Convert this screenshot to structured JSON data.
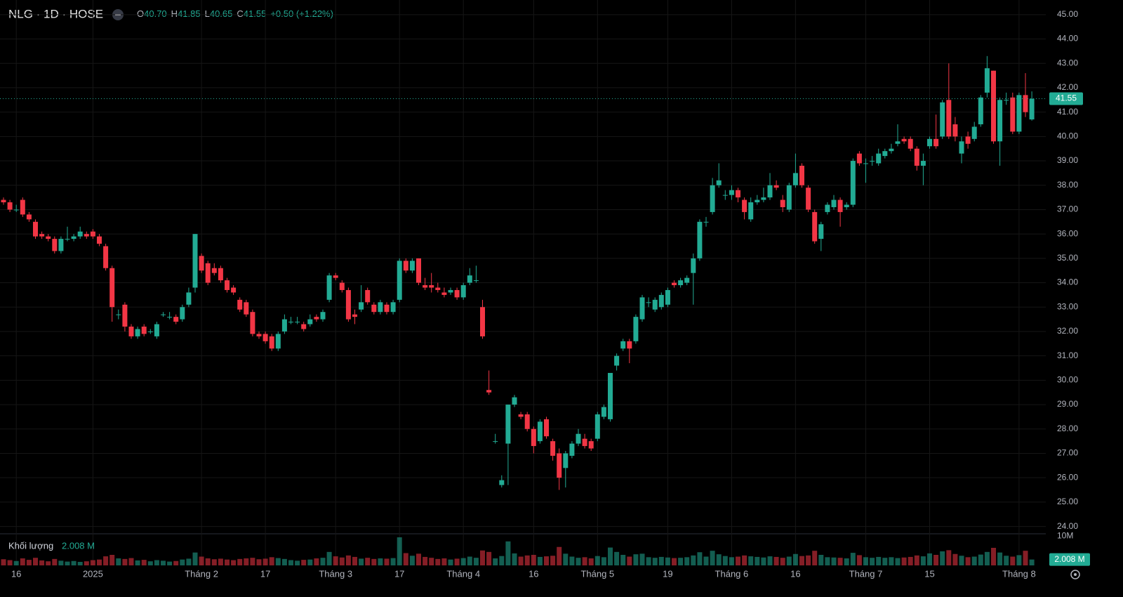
{
  "header": {
    "symbol": "NLG · 1D · HOSE",
    "open_label": "O",
    "open": "40.70",
    "high_label": "H",
    "high": "41.85",
    "low_label": "L",
    "low": "40.65",
    "close_label": "C",
    "close": "41.55",
    "change": "+0.50 (+1.22%)"
  },
  "chart_data": {
    "type": "candlestick",
    "up_color": "#22ab94",
    "down_color": "#f23645",
    "grid": true,
    "ylim": [
      23.7,
      45.6
    ],
    "yticks": [
      {
        "value": 24,
        "label": "24.00"
      },
      {
        "value": 25,
        "label": "25.00"
      },
      {
        "value": 26,
        "label": "26.00"
      },
      {
        "value": 27,
        "label": "27.00"
      },
      {
        "value": 28,
        "label": "28.00"
      },
      {
        "value": 29,
        "label": "29.00"
      },
      {
        "value": 30,
        "label": "30.00"
      },
      {
        "value": 31,
        "label": "31.00"
      },
      {
        "value": 32,
        "label": "32.00"
      },
      {
        "value": 33,
        "label": "33.00"
      },
      {
        "value": 34,
        "label": "34.00"
      },
      {
        "value": 35,
        "label": "35.00"
      },
      {
        "value": 36,
        "label": "36.00"
      },
      {
        "value": 37,
        "label": "37.00"
      },
      {
        "value": 38,
        "label": "38.00"
      },
      {
        "value": 39,
        "label": "39.00"
      },
      {
        "value": 40,
        "label": "40.00"
      },
      {
        "value": 41,
        "label": "41.00"
      },
      {
        "value": 42,
        "label": "42.00"
      },
      {
        "value": 43,
        "label": "43.00"
      },
      {
        "value": 44,
        "label": "44.00"
      },
      {
        "value": 45,
        "label": "45.00"
      }
    ],
    "categories": [
      null,
      null,
      "16",
      null,
      null,
      null,
      null,
      null,
      null,
      null,
      null,
      null,
      null,
      null,
      "2025",
      null,
      null,
      null,
      null,
      null,
      null,
      null,
      null,
      null,
      null,
      null,
      null,
      null,
      null,
      null,
      null,
      "Tháng 2",
      null,
      null,
      null,
      null,
      null,
      null,
      null,
      null,
      null,
      "17",
      null,
      null,
      null,
      null,
      null,
      null,
      null,
      null,
      null,
      null,
      "Tháng 3",
      null,
      null,
      null,
      null,
      null,
      null,
      null,
      null,
      null,
      "17",
      null,
      null,
      null,
      null,
      null,
      null,
      null,
      null,
      null,
      "Tháng 4",
      null,
      null,
      null,
      null,
      null,
      null,
      null,
      null,
      null,
      null,
      "16",
      null,
      null,
      null,
      null,
      null,
      null,
      null,
      null,
      null,
      "Tháng 5",
      null,
      null,
      null,
      null,
      null,
      null,
      null,
      null,
      null,
      null,
      "19",
      null,
      null,
      null,
      null,
      null,
      null,
      null,
      null,
      null,
      "Tháng 6",
      null,
      null,
      null,
      null,
      null,
      null,
      null,
      null,
      null,
      "16",
      null,
      null,
      null,
      null,
      null,
      null,
      null,
      null,
      null,
      null,
      "Tháng 7",
      null,
      null,
      null,
      null,
      null,
      null,
      null,
      null,
      null,
      "15",
      null,
      null,
      null,
      null,
      null,
      null,
      null,
      null,
      null,
      null,
      null,
      null,
      null,
      "Tháng 8",
      null,
      null
    ],
    "open": [
      37.4,
      37.3,
      37.0,
      37.4,
      36.8,
      36.5,
      36.0,
      35.9,
      35.8,
      35.3,
      35.8,
      35.8,
      35.9,
      36.0,
      36.1,
      35.9,
      35.5,
      34.6,
      32.7,
      33.1,
      32.2,
      31.8,
      32.2,
      32.0,
      31.8,
      32.7,
      32.6,
      32.6,
      32.5,
      33.1,
      33.8,
      35.1,
      34.8,
      34.6,
      34.6,
      34.1,
      33.8,
      33.3,
      33.2,
      32.8,
      31.9,
      31.9,
      31.8,
      31.3,
      32.0,
      32.4,
      32.4,
      32.3,
      32.3,
      32.6,
      32.5,
      33.3,
      34.3,
      34.0,
      33.7,
      32.7,
      32.9,
      33.7,
      33.1,
      32.8,
      33.1,
      32.8,
      33.3,
      34.9,
      34.5,
      35.0,
      33.9,
      33.9,
      33.8,
      33.6,
      33.6,
      33.7,
      33.4,
      34.0,
      34.1,
      33.0,
      29.6,
      27.5,
      25.7,
      27.4,
      29.0,
      28.6,
      28.6,
      28.0,
      27.5,
      28.4,
      27.5,
      27.0,
      26.4,
      26.9,
      27.4,
      27.6,
      27.5,
      27.6,
      28.5,
      28.4,
      30.6,
      31.3,
      31.6,
      31.6,
      32.5,
      33.2,
      32.9,
      33.0,
      33.1,
      34.0,
      33.9,
      34.0,
      34.4,
      35.0,
      36.5,
      36.9,
      38.0,
      37.6,
      37.6,
      37.8,
      37.4,
      36.6,
      37.3,
      37.4,
      37.5,
      38.0,
      37.4,
      37.0,
      38.0,
      38.8,
      37.9,
      36.9,
      35.8,
      36.9,
      37.1,
      37.4,
      37.1,
      37.2,
      39.3,
      38.9,
      39.0,
      38.9,
      39.2,
      39.4,
      39.7,
      39.9,
      39.9,
      39.5,
      38.8,
      39.6,
      39.9,
      40.0,
      41.5,
      40.5,
      39.3,
      40.0,
      39.9,
      40.5,
      41.8,
      42.7,
      39.8,
      41.5,
      41.6,
      40.2,
      41.7,
      40.7
    ],
    "high": [
      37.5,
      37.4,
      37.2,
      37.5,
      36.9,
      36.6,
      36.1,
      36.0,
      35.9,
      35.9,
      36.3,
      36.0,
      36.3,
      36.1,
      36.2,
      36.0,
      35.6,
      34.7,
      32.9,
      33.2,
      32.3,
      32.2,
      32.3,
      32.1,
      32.4,
      32.8,
      32.8,
      32.7,
      33.1,
      33.8,
      36.0,
      35.2,
      34.9,
      34.8,
      34.7,
      34.2,
      33.9,
      33.4,
      33.3,
      32.9,
      32.0,
      32.0,
      31.9,
      32.0,
      32.7,
      32.6,
      32.6,
      32.4,
      32.7,
      32.7,
      32.9,
      34.4,
      34.4,
      34.1,
      33.8,
      32.9,
      33.9,
      33.8,
      33.2,
      33.3,
      33.2,
      33.3,
      35.0,
      35.0,
      35.0,
      35.0,
      34.2,
      34.4,
      34.0,
      33.8,
      33.8,
      33.8,
      34.0,
      34.6,
      34.7,
      33.3,
      30.4,
      27.8,
      26.1,
      29.0,
      29.4,
      28.7,
      28.7,
      28.1,
      28.4,
      28.5,
      27.6,
      27.2,
      27.1,
      27.5,
      28.0,
      27.8,
      27.6,
      28.7,
      29.0,
      30.3,
      31.1,
      31.7,
      31.7,
      32.7,
      33.5,
      33.4,
      33.4,
      33.6,
      33.8,
      34.1,
      34.2,
      34.3,
      35.2,
      36.6,
      36.7,
      38.3,
      38.9,
      37.8,
      38.0,
      37.9,
      37.5,
      37.5,
      37.6,
      37.9,
      38.5,
      38.2,
      37.6,
      38.1,
      39.3,
      38.9,
      38.0,
      37.0,
      36.5,
      37.3,
      37.6,
      37.5,
      37.3,
      39.1,
      39.4,
      39.1,
      39.2,
      39.5,
      39.5,
      39.7,
      40.5,
      40.0,
      40.0,
      39.6,
      39.3,
      40.0,
      40.9,
      41.5,
      43.0,
      40.8,
      40.0,
      40.2,
      40.6,
      41.7,
      43.3,
      42.7,
      41.6,
      41.8,
      41.8,
      41.8,
      42.6,
      41.85
    ],
    "low": [
      37.2,
      36.9,
      36.9,
      36.7,
      36.5,
      35.8,
      35.8,
      35.7,
      35.2,
      35.2,
      35.7,
      35.7,
      35.8,
      35.8,
      35.8,
      35.5,
      34.5,
      32.4,
      32.5,
      32.0,
      31.7,
      31.7,
      31.8,
      31.9,
      31.7,
      32.6,
      32.5,
      32.3,
      32.4,
      33.0,
      33.6,
      34.4,
      33.9,
      34.3,
      34.0,
      33.6,
      33.5,
      32.8,
      32.6,
      31.8,
      31.7,
      31.5,
      31.2,
      31.2,
      31.9,
      32.3,
      32.3,
      32.0,
      32.2,
      32.4,
      32.4,
      33.2,
      34.1,
      33.6,
      32.4,
      32.3,
      32.8,
      33.1,
      32.7,
      32.7,
      32.7,
      32.7,
      33.2,
      34.4,
      34.4,
      33.9,
      33.7,
      33.6,
      33.6,
      33.4,
      33.5,
      33.3,
      33.3,
      33.9,
      34.0,
      31.7,
      29.4,
      27.4,
      25.6,
      25.7,
      28.9,
      28.4,
      27.9,
      27.0,
      27.4,
      27.6,
      26.7,
      25.5,
      25.6,
      26.8,
      27.3,
      27.2,
      27.1,
      27.5,
      28.4,
      28.3,
      30.4,
      31.2,
      30.7,
      31.5,
      32.4,
      33.0,
      32.8,
      32.9,
      33.0,
      33.8,
      33.8,
      33.9,
      33.1,
      34.9,
      36.3,
      36.8,
      37.9,
      37.4,
      37.4,
      37.3,
      36.6,
      36.5,
      37.2,
      37.3,
      37.4,
      37.8,
      36.9,
      36.9,
      37.9,
      37.9,
      36.9,
      35.6,
      35.3,
      36.8,
      37.0,
      36.3,
      37.0,
      37.1,
      38.8,
      38.1,
      38.8,
      38.8,
      39.1,
      39.3,
      39.6,
      39.7,
      39.4,
      38.6,
      38.0,
      39.5,
      39.5,
      39.9,
      39.9,
      39.8,
      38.9,
      39.5,
      39.8,
      40.4,
      41.6,
      39.7,
      38.8,
      41.3,
      40.1,
      40.1,
      40.8,
      40.65
    ],
    "close": [
      37.3,
      37.0,
      37.0,
      36.8,
      36.6,
      35.9,
      35.9,
      35.8,
      35.3,
      35.8,
      35.8,
      35.9,
      36.1,
      35.9,
      35.9,
      35.6,
      34.6,
      33.0,
      32.7,
      32.2,
      31.8,
      32.1,
      31.9,
      32.0,
      32.3,
      32.7,
      32.6,
      32.4,
      33.0,
      33.6,
      36.0,
      34.5,
      34.0,
      34.4,
      34.1,
      33.7,
      33.6,
      32.9,
      32.7,
      31.9,
      31.8,
      31.6,
      31.3,
      31.9,
      32.5,
      32.4,
      32.4,
      32.1,
      32.5,
      32.5,
      32.8,
      34.3,
      34.2,
      33.7,
      32.5,
      32.6,
      33.2,
      33.2,
      32.8,
      33.2,
      32.8,
      33.2,
      34.9,
      34.5,
      34.9,
      34.0,
      33.8,
      33.8,
      33.7,
      33.5,
      33.7,
      33.4,
      33.9,
      34.3,
      34.1,
      31.8,
      29.5,
      27.5,
      25.9,
      29.0,
      29.3,
      28.5,
      28.0,
      27.3,
      28.3,
      27.7,
      26.9,
      26.0,
      27.0,
      27.4,
      27.8,
      27.3,
      27.2,
      28.6,
      28.9,
      30.3,
      31.0,
      31.6,
      31.3,
      32.6,
      33.4,
      33.2,
      33.3,
      33.5,
      33.7,
      33.9,
      34.1,
      34.2,
      35.0,
      36.5,
      36.5,
      38.0,
      38.2,
      37.6,
      37.8,
      37.5,
      36.9,
      37.3,
      37.4,
      37.5,
      38.0,
      37.9,
      37.1,
      38.0,
      38.5,
      38.0,
      37.0,
      35.7,
      36.4,
      37.2,
      37.4,
      36.9,
      37.2,
      39.0,
      38.9,
      38.9,
      39.0,
      39.3,
      39.4,
      39.5,
      39.8,
      39.8,
      39.5,
      38.8,
      39.0,
      39.9,
      39.6,
      41.4,
      40.0,
      40.0,
      39.8,
      39.7,
      40.4,
      41.6,
      42.8,
      39.8,
      41.5,
      41.5,
      40.2,
      41.7,
      41.0,
      41.55
    ],
    "volume": {
      "name": "Khối lượng",
      "last_value_label": "2.008 M",
      "ylim": [
        0,
        10.8
      ],
      "yticks": [
        {
          "value": 10,
          "label": "10M"
        }
      ],
      "values": [
        2.1,
        1.8,
        1.5,
        2.4,
        1.9,
        2.6,
        1.7,
        1.4,
        2.2,
        1.6,
        1.3,
        1.5,
        1.2,
        1.4,
        1.8,
        2.0,
        3.1,
        3.6,
        2.4,
        2.2,
        2.5,
        1.7,
        1.9,
        1.4,
        1.8,
        1.6,
        1.3,
        1.5,
        2.0,
        2.3,
        4.4,
        3.0,
        2.4,
        2.1,
        2.3,
        2.0,
        1.8,
        2.2,
        2.4,
        2.6,
        2.1,
        2.3,
        2.8,
        2.5,
        2.2,
        1.8,
        1.6,
        1.9,
        2.0,
        2.4,
        2.6,
        4.6,
        3.1,
        2.7,
        3.4,
        2.9,
        2.3,
        2.6,
        2.2,
        2.4,
        2.3,
        2.5,
        9.6,
        4.2,
        3.3,
        4.0,
        2.9,
        2.6,
        2.2,
        2.4,
        2.0,
        2.3,
        2.5,
        3.0,
        2.6,
        5.1,
        4.6,
        2.4,
        3.2,
        8.2,
        4.1,
        3.0,
        3.4,
        3.6,
        2.9,
        3.1,
        3.3,
        6.3,
        4.0,
        3.0,
        2.6,
        2.8,
        2.4,
        3.2,
        2.8,
        6.1,
        4.6,
        3.6,
        3.0,
        3.8,
        4.0,
        2.8,
        2.6,
        2.9,
        2.7,
        2.5,
        2.6,
        2.8,
        3.4,
        4.5,
        3.0,
        5.0,
        3.8,
        3.2,
        2.8,
        3.0,
        3.4,
        3.1,
        2.9,
        2.7,
        3.1,
        2.9,
        2.6,
        3.0,
        3.9,
        3.2,
        3.4,
        5.0,
        3.6,
        2.8,
        2.7,
        2.6,
        2.4,
        4.3,
        3.5,
        2.8,
        2.6,
        2.9,
        2.6,
        2.8,
        2.5,
        2.7,
        2.9,
        3.4,
        3.1,
        4.1,
        3.6,
        4.8,
        5.2,
        3.9,
        3.3,
        2.8,
        3.0,
        3.7,
        4.6,
        6.0,
        4.4,
        3.3,
        3.0,
        3.5,
        5.0,
        2.008
      ]
    }
  }
}
